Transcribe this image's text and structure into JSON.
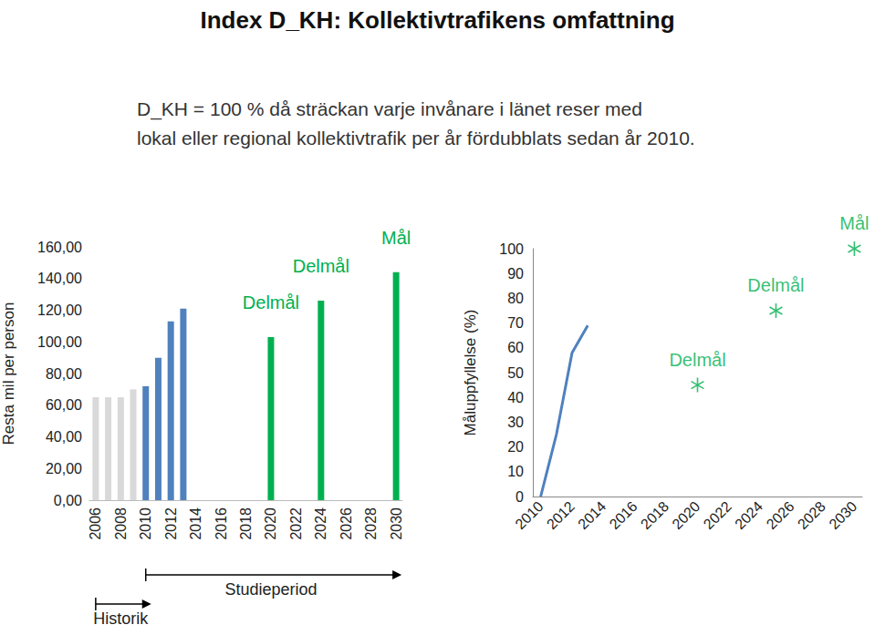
{
  "title": "Index D_KH: Kollektivtrafikens omfattning",
  "subtitle": [
    "D_KH = 100 % då sträckan varje invånare i länet reser med",
    "lokal eller regional kollektivtrafik per år fördubblats sedan år 2010."
  ],
  "chart_data": [
    {
      "type": "bar",
      "ylabel": "Resta mil per person",
      "categories": [
        "2006",
        null,
        "2008",
        null,
        "2010",
        null,
        "2012",
        null,
        "2014",
        null,
        "2016",
        null,
        "2018",
        null,
        "2020",
        null,
        "2022",
        null,
        "2024",
        null,
        "2026",
        null,
        "2028",
        null,
        "2030"
      ],
      "series": [
        {
          "color": "#d9d9d9",
          "values": [
            65,
            65,
            65,
            70,
            null,
            null,
            null,
            null,
            null,
            null,
            null,
            null,
            null,
            null,
            null,
            null,
            null,
            null,
            null,
            null,
            null,
            null,
            null,
            null,
            null
          ]
        },
        {
          "color": "#4f81bd",
          "values": [
            null,
            null,
            null,
            null,
            72,
            90,
            113,
            121,
            null,
            null,
            null,
            null,
            null,
            null,
            null,
            null,
            null,
            null,
            null,
            null,
            null,
            null,
            null,
            null,
            null
          ]
        },
        {
          "color": "#00b050",
          "values": [
            null,
            null,
            null,
            null,
            null,
            null,
            null,
            null,
            null,
            null,
            null,
            null,
            null,
            null,
            103,
            null,
            null,
            null,
            126,
            null,
            null,
            null,
            null,
            null,
            144
          ]
        }
      ],
      "ylim": [
        0,
        160
      ],
      "yticks": [
        {
          "value": 0,
          "label": "0,00"
        },
        {
          "value": 20,
          "label": "20,00"
        },
        {
          "value": 40,
          "label": "40,00"
        },
        {
          "value": 60,
          "label": "60,00"
        },
        {
          "value": 80,
          "label": "80,00"
        },
        {
          "value": 100,
          "label": "100,00"
        },
        {
          "value": 120,
          "label": "120,00"
        },
        {
          "value": 140,
          "label": "140,00"
        },
        {
          "value": 160,
          "label": "160,00"
        }
      ],
      "grid": false,
      "annotations": [
        {
          "x": "2020",
          "text": "Delmål"
        },
        {
          "x": "2024",
          "text": "Delmål"
        },
        {
          "x": "2030",
          "text": "Mål"
        }
      ],
      "spans": [
        {
          "text": "Studieperiod",
          "from": "2010",
          "to": "2030"
        },
        {
          "text": "Historik",
          "from": "2006",
          "to": "2010"
        }
      ]
    },
    {
      "type": "line",
      "ylabel": "Måluppfyllelse (%)",
      "series": [
        {
          "type": "line",
          "color": "#4f81bd",
          "x": [
            2010,
            2011,
            2012,
            2013
          ],
          "values": [
            0,
            25,
            58,
            69
          ]
        },
        {
          "type": "scatter",
          "color": "#00b050",
          "marker": "asterisk",
          "x": [
            2020,
            2025,
            2030
          ],
          "values": [
            45,
            75,
            100
          ]
        }
      ],
      "xlim": [
        2009.5,
        2030.5
      ],
      "xticks": [
        2010,
        2012,
        2014,
        2016,
        2018,
        2020,
        2022,
        2024,
        2026,
        2028,
        2030
      ],
      "ylim": [
        0,
        100
      ],
      "yticks": [
        0,
        10,
        20,
        30,
        40,
        50,
        60,
        70,
        80,
        90,
        100
      ],
      "grid": false,
      "annotations": [
        {
          "x": 2020,
          "text": "Delmål"
        },
        {
          "x": 2025,
          "text": "Delmål"
        },
        {
          "x": 2030,
          "text": "Mål"
        }
      ]
    }
  ]
}
